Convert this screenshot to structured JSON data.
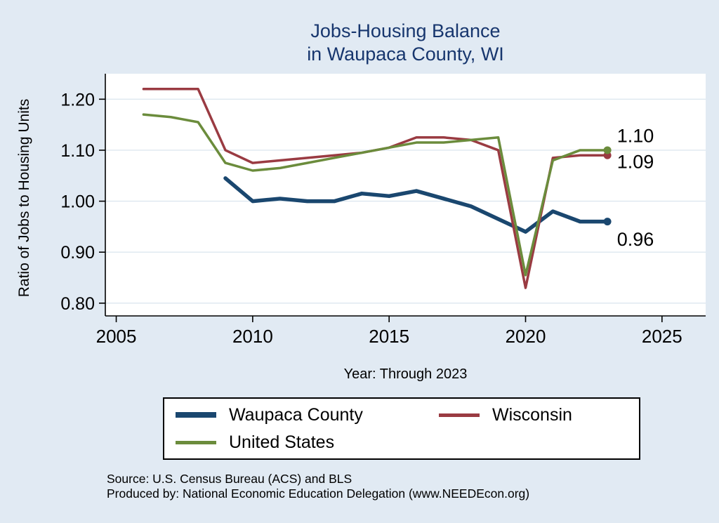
{
  "title": {
    "line1": "Jobs-Housing Balance",
    "line2": "in Waupaca County, WI"
  },
  "ylabel": "Ratio of Jobs to Housing Units",
  "xlabel": "Year: Through 2023",
  "source": {
    "line1": "Source: U.S. Census Bureau (ACS) and BLS",
    "line2": "Produced by: National Economic Education Delegation (www.NEEDEcon.org)"
  },
  "chart_data": {
    "type": "line",
    "x": [
      2006,
      2007,
      2008,
      2009,
      2010,
      2011,
      2012,
      2013,
      2014,
      2015,
      2016,
      2017,
      2018,
      2019,
      2020,
      2021,
      2022,
      2023
    ],
    "series": [
      {
        "name": "Waupaca County",
        "color": "#1a476f",
        "width": 5.5,
        "values": [
          null,
          null,
          null,
          1.045,
          1.0,
          1.005,
          1.0,
          1.0,
          1.015,
          1.01,
          1.02,
          1.005,
          0.99,
          0.965,
          0.94,
          0.98,
          0.96,
          0.96
        ]
      },
      {
        "name": "Wisconsin",
        "color": "#9a3b42",
        "width": 3.5,
        "values": [
          1.22,
          1.22,
          1.22,
          1.1,
          1.075,
          1.08,
          1.085,
          1.09,
          1.095,
          1.105,
          1.125,
          1.125,
          1.12,
          1.1,
          0.83,
          1.085,
          1.09,
          1.09
        ]
      },
      {
        "name": "United States",
        "color": "#6b8c3c",
        "width": 3.5,
        "values": [
          1.17,
          1.165,
          1.155,
          1.075,
          1.06,
          1.065,
          1.075,
          1.085,
          1.095,
          1.105,
          1.115,
          1.115,
          1.12,
          1.125,
          0.855,
          1.08,
          1.1,
          1.1
        ]
      }
    ],
    "xlim": [
      2004.6,
      2026.6
    ],
    "ylim": [
      0.775,
      1.25
    ],
    "xtick_values": [
      2005,
      2010,
      2015,
      2020,
      2025
    ],
    "xtick_labels": [
      "2005",
      "2010",
      "2015",
      "2020",
      "2025"
    ],
    "ytick_values": [
      0.8,
      0.9,
      1.0,
      1.1,
      1.2
    ],
    "ytick_labels": [
      "0.80",
      "0.90",
      "1.00",
      "1.10",
      "1.20"
    ],
    "grid": true,
    "grid_color": "#dde7ef",
    "legend_position": "bottom",
    "end_labels": [
      {
        "text": "1.10",
        "x": 2023.35,
        "y": 1.128
      },
      {
        "text": "1.09",
        "x": 2023.35,
        "y": 1.077
      },
      {
        "text": "0.96",
        "x": 2023.35,
        "y": 0.925
      }
    ]
  }
}
